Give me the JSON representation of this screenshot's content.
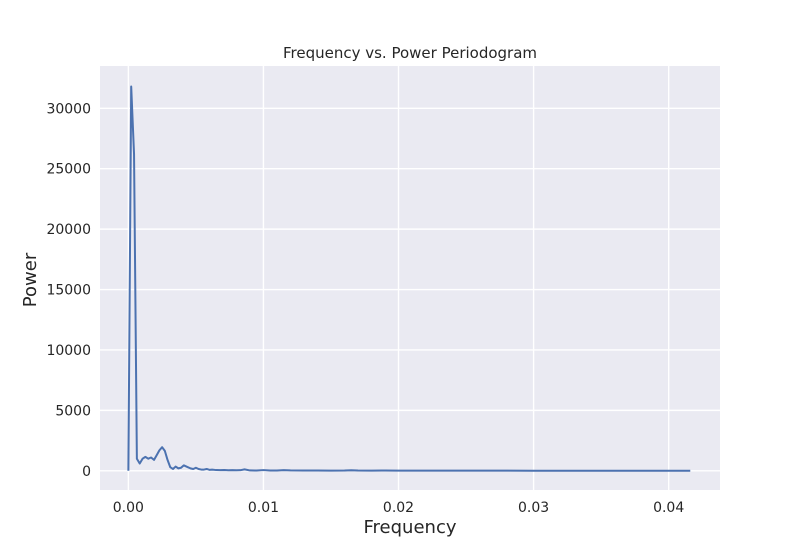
{
  "chart_data": {
    "type": "line",
    "title": "Frequency vs. Power Periodogram",
    "xlabel": "Frequency",
    "ylabel": "Power",
    "xlim": [
      -0.0021,
      0.0438
    ],
    "ylim": [
      -1590,
      33500
    ],
    "xticks": [
      0.0,
      0.01,
      0.02,
      0.03,
      0.04
    ],
    "xtick_labels": [
      "0.00",
      "0.01",
      "0.02",
      "0.03",
      "0.04"
    ],
    "yticks": [
      0,
      5000,
      10000,
      15000,
      20000,
      25000,
      30000
    ],
    "ytick_labels": [
      "0",
      "5000",
      "10000",
      "15000",
      "20000",
      "25000",
      "30000"
    ],
    "grid": true,
    "legend": false,
    "colors": {
      "line": "#4c72b0",
      "background": "#eaeaf2",
      "grid": "#ffffff"
    },
    "series": [
      {
        "x": [
          0.0,
          0.00021,
          0.00042,
          0.00063,
          0.00084,
          0.00105,
          0.00126,
          0.00147,
          0.00168,
          0.0019,
          0.0021,
          0.0023,
          0.0025,
          0.0027,
          0.0029,
          0.0031,
          0.0033,
          0.0035,
          0.0037,
          0.0039,
          0.0041,
          0.0044,
          0.0046,
          0.0048,
          0.005,
          0.0052,
          0.0054,
          0.0056,
          0.0058,
          0.006,
          0.0062,
          0.0065,
          0.0068,
          0.0071,
          0.0074,
          0.0077,
          0.008,
          0.0083,
          0.0086,
          0.009,
          0.0095,
          0.01,
          0.0105,
          0.011,
          0.0115,
          0.012,
          0.013,
          0.014,
          0.015,
          0.016,
          0.0165,
          0.017,
          0.018,
          0.019,
          0.02,
          0.022,
          0.024,
          0.026,
          0.028,
          0.03,
          0.032,
          0.034,
          0.036,
          0.038,
          0.04,
          0.0416
        ],
        "y": [
          0,
          31800,
          26200,
          1000,
          600,
          1000,
          1150,
          1000,
          1100,
          900,
          1300,
          1700,
          1950,
          1650,
          900,
          300,
          150,
          350,
          200,
          250,
          450,
          300,
          200,
          150,
          250,
          150,
          100,
          100,
          150,
          80,
          100,
          60,
          50,
          60,
          40,
          50,
          40,
          50,
          120,
          30,
          20,
          60,
          20,
          20,
          50,
          30,
          20,
          20,
          15,
          20,
          40,
          20,
          15,
          25,
          10,
          10,
          10,
          10,
          10,
          8,
          8,
          6,
          6,
          5,
          5,
          5
        ]
      }
    ]
  }
}
